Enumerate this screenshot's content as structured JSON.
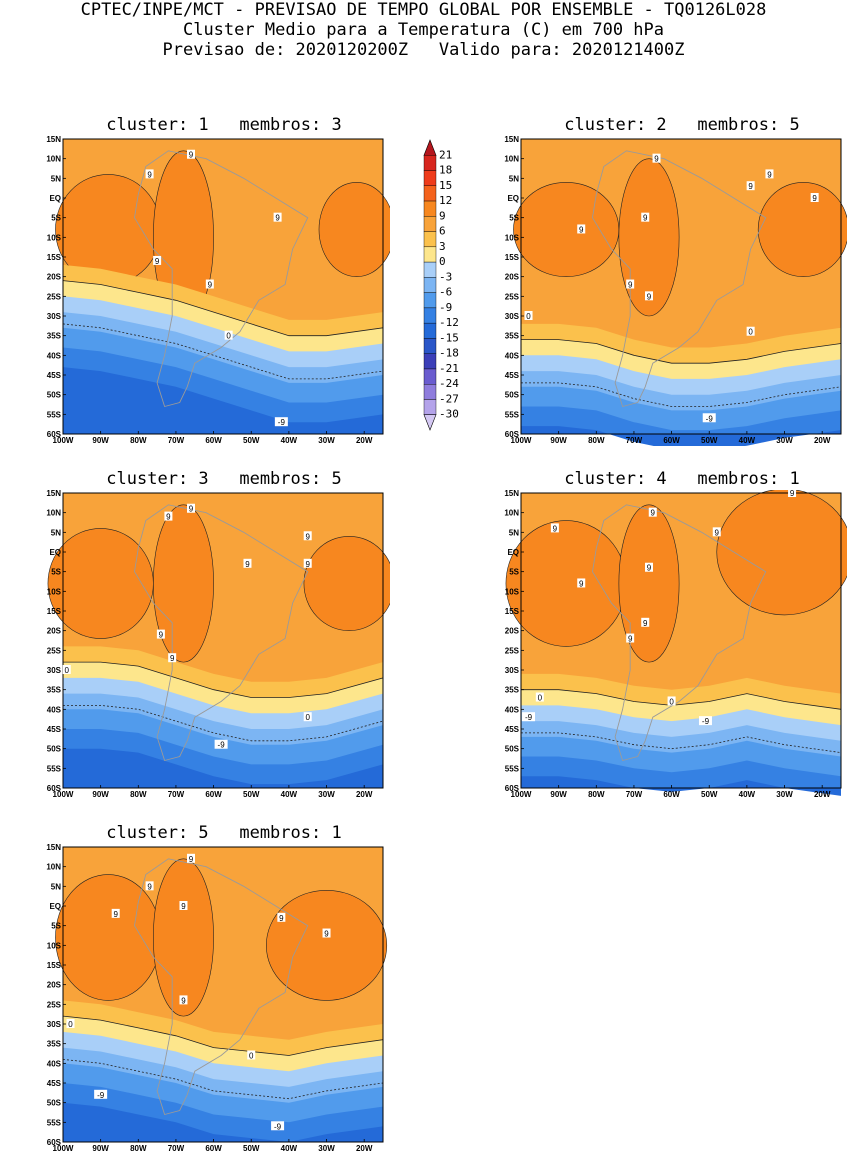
{
  "header": {
    "line1": "CPTEC/INPE/MCT - PREVISAO DE TEMPO GLOBAL POR ENSEMBLE - TQ0126L028",
    "line2": "Cluster Medio para a Temperatura (C) em 700 hPa",
    "line3": "Previsao de: 2020120200Z   Valido para: 2020121400Z"
  },
  "axes": {
    "lat_labels": [
      "15N",
      "10N",
      "5N",
      "EQ",
      "5S",
      "10S",
      "15S",
      "20S",
      "25S",
      "30S",
      "35S",
      "40S",
      "45S",
      "50S",
      "55S",
      "60S"
    ],
    "lon_labels": [
      "100W",
      "90W",
      "80W",
      "70W",
      "60W",
      "50W",
      "40W",
      "30W",
      "20W"
    ]
  },
  "legend": {
    "levels": [
      "21",
      "18",
      "15",
      "12",
      "9",
      "6",
      "3",
      "0",
      "-3",
      "-6",
      "-9",
      "-12",
      "-15",
      "-18",
      "-21",
      "-24",
      "-27",
      "-30"
    ],
    "colors": [
      "#b4161d",
      "#d7261e",
      "#ee3b1b",
      "#f4621c",
      "#f7871f",
      "#f8a33a",
      "#fbc14c",
      "#fde68c",
      "#a9cff8",
      "#7cb5f3",
      "#519bec",
      "#3581e3",
      "#246ad8",
      "#2a56c8",
      "#3b3fb8",
      "#6a5ccf",
      "#8f7ddd",
      "#b4a3ea",
      "#d4c8f3"
    ]
  },
  "panels": [
    {
      "title": "cluster: 1   membros: 3",
      "labels": [
        {
          "text": "9",
          "lon": -66,
          "lat": 11
        },
        {
          "text": "9",
          "lon": -77,
          "lat": 6
        },
        {
          "text": "9",
          "lon": -43,
          "lat": -5
        },
        {
          "text": "9",
          "lon": -75,
          "lat": -16
        },
        {
          "text": "9",
          "lon": -61,
          "lat": -22
        },
        {
          "text": "0",
          "lon": -56,
          "lat": -35
        },
        {
          "text": "-9",
          "lon": -42,
          "lat": -57
        }
      ]
    },
    {
      "title": "cluster: 2   membros: 5",
      "labels": [
        {
          "text": "9",
          "lon": -64,
          "lat": 10
        },
        {
          "text": "9",
          "lon": -34,
          "lat": 6
        },
        {
          "text": "9",
          "lon": -39,
          "lat": 3
        },
        {
          "text": "9",
          "lon": -22,
          "lat": 0
        },
        {
          "text": "9",
          "lon": -67,
          "lat": -5
        },
        {
          "text": "9",
          "lon": -84,
          "lat": -8
        },
        {
          "text": "9",
          "lon": -71,
          "lat": -22
        },
        {
          "text": "9",
          "lon": -66,
          "lat": -25
        },
        {
          "text": "0",
          "lon": -98,
          "lat": -30
        },
        {
          "text": "0",
          "lon": -39,
          "lat": -34
        },
        {
          "text": "-9",
          "lon": -50,
          "lat": -56
        }
      ]
    },
    {
      "title": "cluster: 3   membros: 5",
      "labels": [
        {
          "text": "9",
          "lon": -66,
          "lat": 11
        },
        {
          "text": "9",
          "lon": -72,
          "lat": 9
        },
        {
          "text": "9",
          "lon": -35,
          "lat": 4
        },
        {
          "text": "9",
          "lon": -51,
          "lat": -3
        },
        {
          "text": "9",
          "lon": -35,
          "lat": -3
        },
        {
          "text": "9",
          "lon": -74,
          "lat": -21
        },
        {
          "text": "9",
          "lon": -71,
          "lat": -27
        },
        {
          "text": "0",
          "lon": -99,
          "lat": -30
        },
        {
          "text": "0",
          "lon": -35,
          "lat": -42
        },
        {
          "text": "-9",
          "lon": -58,
          "lat": -49
        }
      ]
    },
    {
      "title": "cluster: 4   membros: 1",
      "labels": [
        {
          "text": "9",
          "lon": -28,
          "lat": 15
        },
        {
          "text": "9",
          "lon": -91,
          "lat": 6
        },
        {
          "text": "9",
          "lon": -65,
          "lat": 10
        },
        {
          "text": "9",
          "lon": -48,
          "lat": 5
        },
        {
          "text": "9",
          "lon": -66,
          "lat": -4
        },
        {
          "text": "9",
          "lon": -84,
          "lat": -8
        },
        {
          "text": "9",
          "lon": -67,
          "lat": -18
        },
        {
          "text": "9",
          "lon": -71,
          "lat": -22
        },
        {
          "text": "0",
          "lon": -95,
          "lat": -37
        },
        {
          "text": "0",
          "lon": -60,
          "lat": -38
        },
        {
          "text": "-9",
          "lon": -98,
          "lat": -42
        },
        {
          "text": "-9",
          "lon": -51,
          "lat": -43
        }
      ]
    },
    {
      "title": "cluster: 5   membros: 1",
      "labels": [
        {
          "text": "9",
          "lon": -66,
          "lat": 12
        },
        {
          "text": "9",
          "lon": -77,
          "lat": 5
        },
        {
          "text": "9",
          "lon": -68,
          "lat": 0
        },
        {
          "text": "9",
          "lon": -86,
          "lat": -2
        },
        {
          "text": "9",
          "lon": -42,
          "lat": -3
        },
        {
          "text": "9",
          "lon": -30,
          "lat": -7
        },
        {
          "text": "9",
          "lon": -68,
          "lat": -24
        },
        {
          "text": "0",
          "lon": -98,
          "lat": -30
        },
        {
          "text": "0",
          "lon": -50,
          "lat": -38
        },
        {
          "text": "-9",
          "lon": -90,
          "lat": -48
        },
        {
          "text": "-9",
          "lon": -43,
          "lat": -56
        }
      ]
    }
  ]
}
